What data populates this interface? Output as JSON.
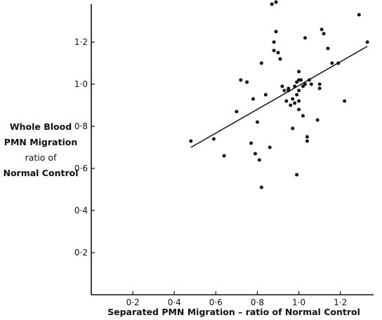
{
  "chart_data": {
    "type": "scatter",
    "title": "",
    "xlabel": "Separated PMN Migration – ratio of Normal Control",
    "ylabel_lines": [
      "Whole Blood",
      "PMN Migration",
      "ratio of",
      "Normal Control"
    ],
    "xlim": [
      0,
      1.36
    ],
    "ylim": [
      0,
      1.38
    ],
    "xticks": [
      0.2,
      0.4,
      0.6,
      0.8,
      1.0,
      1.2
    ],
    "xtick_labels": [
      "0·2",
      "0·4",
      "0·6",
      "0·8",
      "1·0",
      "1·2"
    ],
    "yticks": [
      0.2,
      0.4,
      0.6,
      0.8,
      1.0,
      1.2
    ],
    "ytick_labels": [
      "0·2",
      "0·4",
      "0·6",
      "0·8",
      "1·0",
      "1·2"
    ],
    "grid": false,
    "regression_line": {
      "x": [
        0.48,
        1.33
      ],
      "y": [
        0.7,
        1.18
      ]
    },
    "points": [
      [
        0.48,
        0.73
      ],
      [
        0.59,
        0.74
      ],
      [
        0.64,
        0.66
      ],
      [
        0.7,
        0.87
      ],
      [
        0.72,
        1.02
      ],
      [
        0.75,
        1.01
      ],
      [
        0.77,
        0.72
      ],
      [
        0.78,
        0.93
      ],
      [
        0.79,
        0.67
      ],
      [
        0.8,
        0.82
      ],
      [
        0.81,
        0.64
      ],
      [
        0.82,
        1.1
      ],
      [
        0.82,
        0.51
      ],
      [
        0.84,
        0.95
      ],
      [
        0.86,
        0.7
      ],
      [
        0.87,
        1.38
      ],
      [
        0.88,
        1.2
      ],
      [
        0.88,
        1.16
      ],
      [
        0.89,
        1.25
      ],
      [
        0.89,
        1.39
      ],
      [
        0.9,
        1.15
      ],
      [
        0.91,
        1.12
      ],
      [
        0.92,
        0.99
      ],
      [
        0.93,
        0.97
      ],
      [
        0.94,
        0.92
      ],
      [
        0.95,
        0.97
      ],
      [
        0.96,
        0.9
      ],
      [
        0.97,
        0.79
      ],
      [
        0.97,
        0.93
      ],
      [
        0.98,
        0.91
      ],
      [
        0.98,
        0.99
      ],
      [
        0.99,
        1.01
      ],
      [
        0.99,
        0.57
      ],
      [
        1.0,
        1.02
      ],
      [
        1.0,
        0.97
      ],
      [
        1.0,
        0.88
      ],
      [
        1.0,
        1.06
      ],
      [
        1.01,
        1.02
      ],
      [
        1.02,
        0.99
      ],
      [
        1.02,
        0.85
      ],
      [
        1.03,
        1.0
      ],
      [
        1.03,
        1.22
      ],
      [
        1.04,
        0.75
      ],
      [
        1.04,
        0.73
      ],
      [
        1.05,
        1.02
      ],
      [
        1.06,
        1.0
      ],
      [
        1.09,
        0.83
      ],
      [
        1.1,
        1.0
      ],
      [
        1.1,
        0.98
      ],
      [
        1.11,
        1.26
      ],
      [
        1.12,
        1.24
      ],
      [
        1.14,
        1.17
      ],
      [
        1.16,
        1.1
      ],
      [
        1.19,
        1.1
      ],
      [
        1.22,
        0.92
      ],
      [
        1.29,
        1.33
      ],
      [
        1.33,
        1.2
      ],
      [
        0.95,
        0.98
      ],
      [
        0.99,
        0.95
      ],
      [
        1.0,
        0.92
      ]
    ]
  }
}
